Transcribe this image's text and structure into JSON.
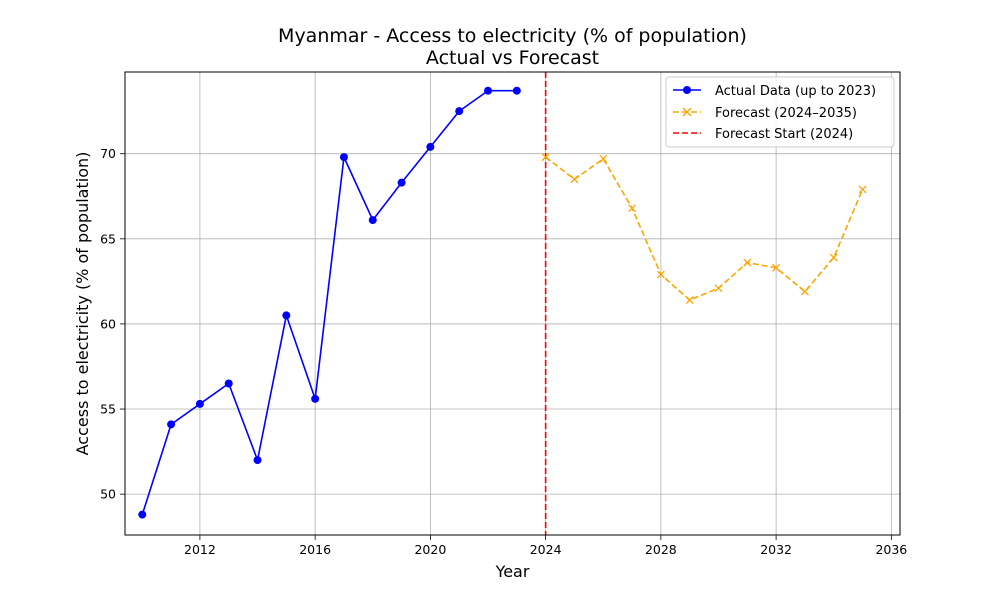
{
  "chart_data": {
    "type": "line",
    "title": "Myanmar - Access to electricity (% of population)",
    "subtitle": "Actual vs Forecast",
    "xlabel": "Year",
    "ylabel": "Access to electricity (% of population)",
    "xlim": [
      2009.4,
      2036.3
    ],
    "ylim": [
      47.6,
      74.8
    ],
    "x_ticks": [
      2012,
      2016,
      2020,
      2024,
      2028,
      2032,
      2036
    ],
    "y_ticks": [
      50,
      55,
      60,
      65,
      70
    ],
    "grid": true,
    "legend_position": "top-right",
    "series": [
      {
        "name": "Actual Data (up to 2023)",
        "color": "#0000ff",
        "line_style": "solid",
        "marker": "circle",
        "x": [
          2010,
          2011,
          2012,
          2013,
          2014,
          2015,
          2016,
          2017,
          2018,
          2019,
          2020,
          2021,
          2022,
          2023
        ],
        "y": [
          48.8,
          54.1,
          55.3,
          56.5,
          52.0,
          60.5,
          55.6,
          69.8,
          66.1,
          68.3,
          70.4,
          72.5,
          73.7,
          73.7
        ]
      },
      {
        "name": "Forecast (2024–2035)",
        "color": "#ffa500",
        "line_style": "dashed",
        "marker": "x",
        "x": [
          2024,
          2025,
          2026,
          2027,
          2028,
          2029,
          2030,
          2031,
          2032,
          2033,
          2034,
          2035
        ],
        "y": [
          69.8,
          68.5,
          69.7,
          66.8,
          62.9,
          61.4,
          62.1,
          63.6,
          63.3,
          61.9,
          63.9,
          67.9
        ]
      }
    ],
    "reference_lines": [
      {
        "name": "Forecast Start (2024)",
        "color": "#ff0000",
        "line_style": "dashed",
        "orientation": "vertical",
        "x": 2024
      }
    ]
  }
}
